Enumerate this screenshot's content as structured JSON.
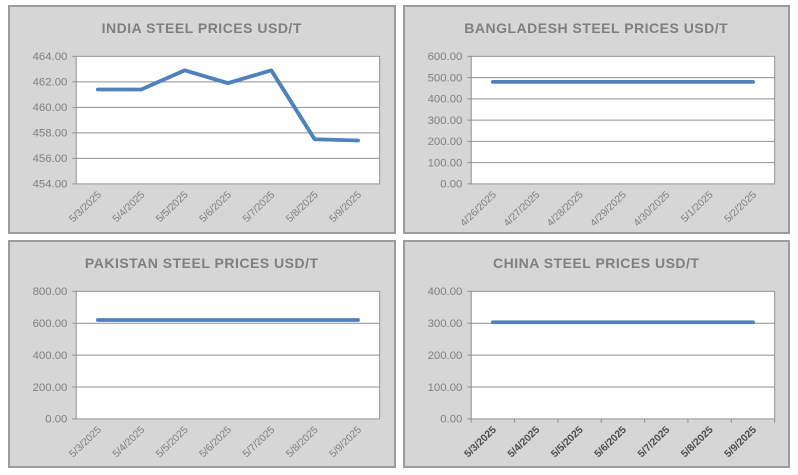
{
  "page": {
    "background": "#FFFFFF"
  },
  "panel_style": {
    "panel_bg": "#D6D6D6",
    "panel_border": "#9C9C9C",
    "title_color": "#7F7F7F",
    "plot_bg": "#FFFFFF",
    "grid_color": "#8F8F8F",
    "axis_label_color": "#7F7F7F",
    "bold_axis_label_color": "#4D4D4D",
    "series_color": "#4F81BD"
  },
  "chart_data": [
    {
      "type": "line",
      "title": "INDIA STEEL PRICES USD/T",
      "categories": [
        "5/3/2025",
        "5/4/2025",
        "5/5/2025",
        "5/6/2025",
        "5/7/2025",
        "5/8/2025",
        "5/9/2025"
      ],
      "values": [
        461.4,
        461.4,
        462.9,
        461.9,
        462.9,
        457.5,
        457.4
      ],
      "ylim": [
        454,
        464
      ],
      "ytick_step": 2,
      "ytick_decimals": 2,
      "grid": true,
      "legend": "none",
      "line_color": "#4F81BD",
      "x_tick_marks": false,
      "x_labels_bold": false,
      "xlabel": "",
      "ylabel": ""
    },
    {
      "type": "line",
      "title": "BANGLADESH STEEL PRICES USD/T",
      "categories": [
        "4/26/2025",
        "4/27/2025",
        "4/28/2025",
        "4/29/2025",
        "4/30/2025",
        "5/1/2025",
        "5/2/2025"
      ],
      "values": [
        480,
        480,
        480,
        480,
        480,
        480,
        480
      ],
      "ylim": [
        0,
        600
      ],
      "ytick_step": 100,
      "ytick_decimals": 2,
      "grid": true,
      "legend": "none",
      "line_color": "#4F81BD",
      "x_tick_marks": false,
      "x_labels_bold": false,
      "xlabel": "",
      "ylabel": ""
    },
    {
      "type": "line",
      "title": "PAKISTAN STEEL PRICES USD/T",
      "categories": [
        "5/3/2025",
        "5/4/2025",
        "5/5/2025",
        "5/6/2025",
        "5/7/2025",
        "5/8/2025",
        "5/9/2025"
      ],
      "values": [
        620,
        620,
        620,
        620,
        620,
        620,
        620
      ],
      "ylim": [
        0,
        800
      ],
      "ytick_step": 200,
      "ytick_decimals": 2,
      "grid": true,
      "legend": "none",
      "line_color": "#4F81BD",
      "x_tick_marks": false,
      "x_labels_bold": false,
      "xlabel": "",
      "ylabel": ""
    },
    {
      "type": "line",
      "title": "CHINA STEEL PRICES USD/T",
      "categories": [
        "5/3/2025",
        "5/4/2025",
        "5/5/2025",
        "5/6/2025",
        "5/7/2025",
        "5/8/2025",
        "5/9/2025"
      ],
      "values": [
        303,
        303,
        303,
        303,
        303,
        303,
        303
      ],
      "ylim": [
        0,
        400
      ],
      "ytick_step": 100,
      "ytick_decimals": 2,
      "grid": true,
      "legend": "none",
      "line_color": "#4F81BD",
      "x_tick_marks": true,
      "x_labels_bold": true,
      "xlabel": "",
      "ylabel": ""
    }
  ]
}
